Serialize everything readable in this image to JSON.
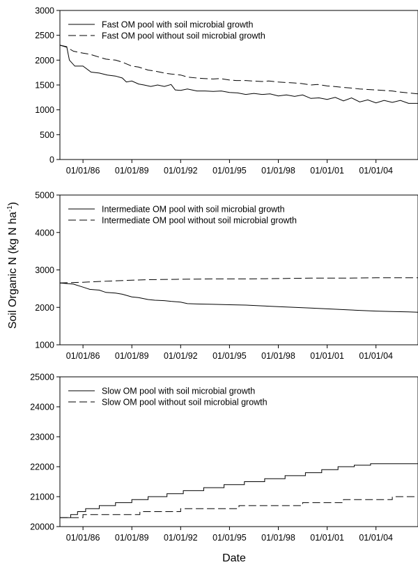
{
  "figure": {
    "ylabel": "Soil Organic N (kg N ha",
    "ylabel_sup": "-1",
    "ylabel_close": ")",
    "xlabel": "Date"
  },
  "chart_data": [
    {
      "type": "line",
      "x_ticks": [
        "01/01/86",
        "01/01/89",
        "01/01/92",
        "01/01/95",
        "01/01/98",
        "01/01/01",
        "01/01/04"
      ],
      "xlim": [
        "1984-08-01",
        "2006-08-01"
      ],
      "ylim": [
        0,
        3000
      ],
      "y_ticks": [
        0,
        500,
        1000,
        1500,
        2000,
        2500,
        3000
      ],
      "legend_position": "top-left",
      "series": [
        {
          "name": "Fast OM pool with soil microbial growth",
          "style": "solid",
          "x": [
            "1984-08-01",
            "1985-01-01",
            "1985-03-01",
            "1985-07-01",
            "1986-01-01",
            "1986-07-01",
            "1987-01-01",
            "1987-07-01",
            "1988-01-01",
            "1988-06-01",
            "1988-09-01",
            "1989-01-01",
            "1989-06-01",
            "1989-10-01",
            "1990-03-01",
            "1990-08-01",
            "1991-01-01",
            "1991-06-01",
            "1991-09-01",
            "1992-01-01",
            "1992-06-01",
            "1993-01-01",
            "1993-07-01",
            "1994-01-01",
            "1994-07-01",
            "1995-01-01",
            "1995-07-01",
            "1996-01-01",
            "1996-07-01",
            "1997-01-01",
            "1997-07-01",
            "1998-01-01",
            "1998-07-01",
            "1999-01-01",
            "1999-07-01",
            "2000-01-01",
            "2000-07-01",
            "2001-01-01",
            "2001-07-01",
            "2002-01-01",
            "2002-07-01",
            "2003-01-01",
            "2003-07-01",
            "2004-01-01",
            "2004-07-01",
            "2005-01-01",
            "2005-07-01",
            "2006-01-01",
            "2006-08-01"
          ],
          "values": [
            2300,
            2270,
            2000,
            1880,
            1880,
            1760,
            1740,
            1700,
            1680,
            1640,
            1560,
            1580,
            1520,
            1500,
            1470,
            1500,
            1470,
            1510,
            1400,
            1390,
            1420,
            1380,
            1380,
            1370,
            1380,
            1350,
            1340,
            1310,
            1330,
            1310,
            1320,
            1280,
            1300,
            1270,
            1300,
            1230,
            1240,
            1210,
            1250,
            1180,
            1240,
            1160,
            1200,
            1140,
            1190,
            1150,
            1190,
            1130,
            1130
          ]
        },
        {
          "name": "Fast OM pool without soil microbial growth",
          "style": "dashed",
          "x": [
            "1984-08-01",
            "1985-01-01",
            "1985-06-01",
            "1986-01-01",
            "1986-06-01",
            "1987-01-01",
            "1987-06-01",
            "1988-01-01",
            "1988-06-01",
            "1989-01-01",
            "1989-06-01",
            "1990-01-01",
            "1990-06-01",
            "1991-01-01",
            "1991-06-01",
            "1992-01-01",
            "1992-06-01",
            "1993-01-01",
            "1993-06-01",
            "1994-01-01",
            "1994-06-01",
            "1995-01-01",
            "1995-06-01",
            "1996-01-01",
            "1996-06-01",
            "1997-01-01",
            "1997-06-01",
            "1998-01-01",
            "1998-06-01",
            "1999-01-01",
            "1999-06-01",
            "2000-01-01",
            "2000-06-01",
            "2001-01-01",
            "2001-06-01",
            "2002-01-01",
            "2002-06-01",
            "2003-01-01",
            "2003-06-01",
            "2004-01-01",
            "2004-06-01",
            "2005-01-01",
            "2005-06-01",
            "2006-01-01",
            "2006-08-01"
          ],
          "values": [
            2300,
            2260,
            2180,
            2140,
            2120,
            2060,
            2020,
            2000,
            1960,
            1880,
            1860,
            1800,
            1780,
            1740,
            1720,
            1700,
            1660,
            1640,
            1630,
            1620,
            1630,
            1600,
            1590,
            1590,
            1580,
            1570,
            1580,
            1560,
            1550,
            1540,
            1530,
            1500,
            1510,
            1480,
            1470,
            1450,
            1440,
            1420,
            1410,
            1400,
            1390,
            1380,
            1360,
            1340,
            1320
          ]
        }
      ]
    },
    {
      "type": "line",
      "x_ticks": [
        "01/01/86",
        "01/01/89",
        "01/01/92",
        "01/01/95",
        "01/01/98",
        "01/01/01",
        "01/01/04"
      ],
      "xlim": [
        "1984-08-01",
        "2006-08-01"
      ],
      "ylim": [
        1000,
        5000
      ],
      "y_ticks": [
        1000,
        2000,
        3000,
        4000,
        5000
      ],
      "legend_position": "top-left",
      "series": [
        {
          "name": "Intermediate OM  pool with soil microbial growth",
          "style": "solid",
          "x": [
            "1984-08-01",
            "1985-06-01",
            "1986-01-01",
            "1986-06-01",
            "1987-01-01",
            "1987-06-01",
            "1988-01-01",
            "1988-06-01",
            "1989-01-01",
            "1989-06-01",
            "1990-01-01",
            "1990-06-01",
            "1991-01-01",
            "1991-06-01",
            "1992-01-01",
            "1992-06-01",
            "1993-01-01",
            "1994-01-01",
            "1995-01-01",
            "1996-01-01",
            "1997-01-01",
            "1998-01-01",
            "1999-01-01",
            "2000-01-01",
            "2001-01-01",
            "2002-01-01",
            "2003-01-01",
            "2004-01-01",
            "2005-01-01",
            "2006-01-01",
            "2006-08-01"
          ],
          "values": [
            2650,
            2620,
            2540,
            2480,
            2460,
            2400,
            2380,
            2350,
            2280,
            2260,
            2210,
            2190,
            2180,
            2160,
            2140,
            2100,
            2090,
            2080,
            2070,
            2060,
            2040,
            2020,
            2000,
            1980,
            1960,
            1940,
            1920,
            1900,
            1890,
            1880,
            1870
          ]
        },
        {
          "name": "Intermediate OM  pool without soil microbial growth",
          "style": "dashed",
          "x": [
            "1984-08-01",
            "1986-01-01",
            "1988-01-01",
            "1990-01-01",
            "1992-01-01",
            "1994-01-01",
            "1996-01-01",
            "1998-01-01",
            "2000-01-01",
            "2002-01-01",
            "2004-01-01",
            "2006-08-01"
          ],
          "values": [
            2650,
            2670,
            2710,
            2740,
            2750,
            2760,
            2760,
            2770,
            2780,
            2780,
            2790,
            2790
          ]
        }
      ]
    },
    {
      "type": "line",
      "x_ticks": [
        "01/01/86",
        "01/01/89",
        "01/01/92",
        "01/01/95",
        "01/01/98",
        "01/01/01",
        "01/01/04"
      ],
      "xlim": [
        "1984-08-01",
        "2006-08-01"
      ],
      "ylim": [
        20000,
        25000
      ],
      "y_ticks": [
        20000,
        21000,
        22000,
        23000,
        24000,
        25000
      ],
      "legend_position": "top-left",
      "series": [
        {
          "name": "Slow OM  pool with soil microbial growth",
          "style": "solid",
          "step": true,
          "x": [
            "1984-08-01",
            "1985-04-01",
            "1985-09-01",
            "1986-03-01",
            "1987-01-01",
            "1988-01-01",
            "1989-01-01",
            "1990-01-01",
            "1991-03-01",
            "1992-03-01",
            "1993-06-01",
            "1994-09-01",
            "1995-12-01",
            "1997-03-01",
            "1998-06-01",
            "1999-09-01",
            "2000-09-01",
            "2001-09-01",
            "2002-09-01",
            "2003-09-01",
            "2004-06-01",
            "2005-06-01",
            "2006-08-01"
          ],
          "values": [
            20300,
            20400,
            20500,
            20600,
            20700,
            20800,
            20900,
            21000,
            21100,
            21200,
            21300,
            21400,
            21500,
            21600,
            21700,
            21800,
            21900,
            22000,
            22050,
            22100,
            22100,
            22100,
            22100
          ]
        },
        {
          "name": "Slow OM  pool without soil microbial growth",
          "style": "dashed",
          "step": true,
          "x": [
            "1984-08-01",
            "1986-01-01",
            "1989-07-01",
            "1992-01-01",
            "1995-08-01",
            "1999-07-01",
            "2002-01-01",
            "2005-01-01",
            "2006-08-01"
          ],
          "values": [
            20300,
            20400,
            20500,
            20600,
            20700,
            20800,
            20900,
            21000,
            21000
          ]
        }
      ]
    }
  ]
}
